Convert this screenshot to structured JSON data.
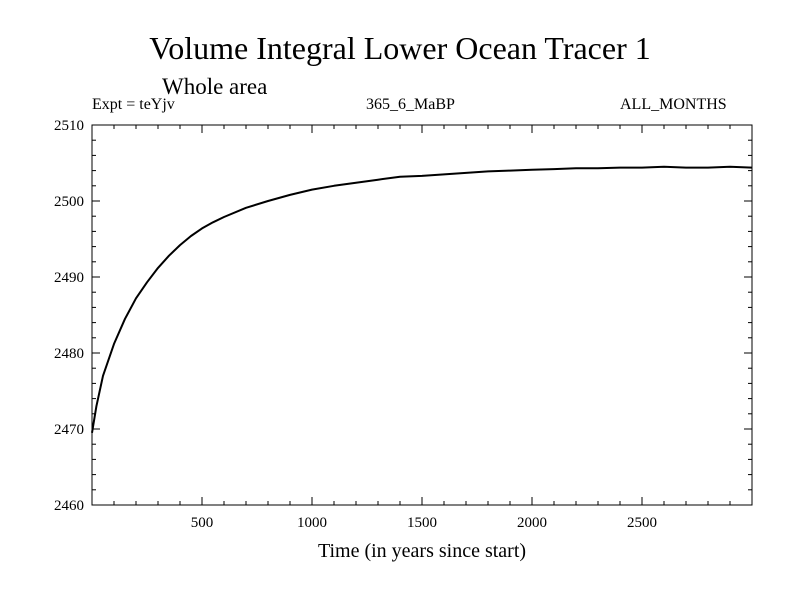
{
  "chart_data": {
    "type": "line",
    "title": "Volume Integral Lower Ocean Tracer 1",
    "subtitle": "Whole area",
    "experiment_label": "Expt = teYjv",
    "run_label": "365_6_MaBP",
    "months_label": "ALL_MONTHS",
    "xlabel": "Time (in years since start)",
    "ylabel": "",
    "xlim": [
      0,
      3000
    ],
    "ylim": [
      2460,
      2510
    ],
    "x_ticks": [
      500,
      1000,
      1500,
      2000,
      2500
    ],
    "y_ticks": [
      2460,
      2470,
      2480,
      2490,
      2500,
      2510
    ],
    "x_minor_step": 100,
    "y_minor_step": 2,
    "series": [
      {
        "name": "Volume Integral Lower Ocean Tracer 1",
        "x": [
          0,
          20,
          50,
          100,
          150,
          200,
          250,
          300,
          350,
          400,
          450,
          500,
          550,
          600,
          700,
          800,
          900,
          1000,
          1100,
          1200,
          1300,
          1400,
          1500,
          1600,
          1700,
          1800,
          1900,
          2000,
          2100,
          2200,
          2300,
          2400,
          2500,
          2600,
          2700,
          2800,
          2900,
          3000
        ],
        "values": [
          2469.5,
          2473.0,
          2477.0,
          2481.2,
          2484.5,
          2487.2,
          2489.3,
          2491.2,
          2492.8,
          2494.2,
          2495.4,
          2496.4,
          2497.2,
          2497.9,
          2499.1,
          2500.0,
          2500.8,
          2501.5,
          2502.0,
          2502.4,
          2502.8,
          2503.2,
          2503.3,
          2503.5,
          2503.7,
          2503.9,
          2504.0,
          2504.1,
          2504.2,
          2504.3,
          2504.3,
          2504.4,
          2504.4,
          2504.5,
          2504.4,
          2504.4,
          2504.5,
          2504.4
        ]
      }
    ]
  }
}
